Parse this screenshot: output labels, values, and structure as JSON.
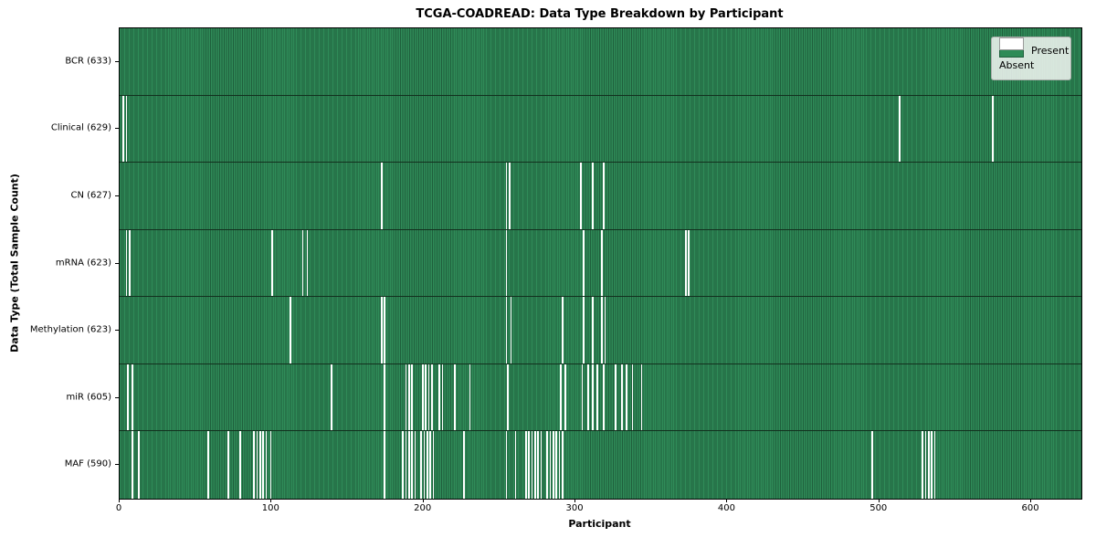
{
  "title": "TCGA-COADREAD: Data Type Breakdown by Participant",
  "axis": {
    "xlabel": "Participant",
    "ylabel": "Data Type (Total Sample Count)"
  },
  "legend": {
    "present_label": "Present",
    "absent_label": "Absent"
  },
  "colors": {
    "present": "#2e8b57",
    "present_edge": "#1f5f3c",
    "absent": "#ffffff",
    "row_divider": "#12301e",
    "axis_line": "#000000"
  },
  "chart_data": {
    "type": "heatmap",
    "title": "TCGA-COADREAD: Data Type Breakdown by Participant",
    "xlabel": "Participant",
    "ylabel": "Data Type (Total Sample Count)",
    "legend": [
      "Present",
      "Absent"
    ],
    "legend_position": "upper right",
    "grid": false,
    "x_range": [
      0,
      633
    ],
    "x_ticks": [
      0,
      100,
      200,
      300,
      400,
      500,
      600
    ],
    "rows": [
      {
        "data_type": "BCR",
        "label": "BCR (633)",
        "present_count": 633,
        "absent_participants": []
      },
      {
        "data_type": "Clinical",
        "label": "Clinical (629)",
        "present_count": 629,
        "absent_participants": [
          2,
          4,
          513,
          574
        ]
      },
      {
        "data_type": "CN",
        "label": "CN (627)",
        "present_count": 627,
        "absent_participants": [
          172,
          254,
          256,
          303,
          311,
          318
        ]
      },
      {
        "data_type": "mRNA",
        "label": "mRNA (623)",
        "present_count": 623,
        "absent_participants": [
          4,
          6,
          100,
          120,
          123,
          254,
          305,
          317,
          372,
          374
        ]
      },
      {
        "data_type": "Methylation",
        "label": "Methylation (623)",
        "present_count": 623,
        "absent_participants": [
          112,
          172,
          174,
          254,
          257,
          291,
          305,
          311,
          317,
          319
        ]
      },
      {
        "data_type": "miR",
        "label": "miR (605)",
        "present_count": 605,
        "absent_participants": [
          5,
          8,
          139,
          174,
          188,
          190,
          192,
          199,
          201,
          203,
          205,
          210,
          212,
          220,
          230,
          255,
          290,
          293,
          304,
          308,
          311,
          314,
          318,
          326,
          330,
          333,
          337,
          343
        ]
      },
      {
        "data_type": "MAF",
        "label": "MAF (590)",
        "present_count": 590,
        "absent_participants": [
          8,
          12,
          58,
          71,
          79,
          88,
          90,
          92,
          94,
          96,
          99,
          174,
          186,
          188,
          190,
          192,
          194,
          198,
          200,
          202,
          204,
          206,
          226,
          254,
          260,
          267,
          269,
          271,
          273,
          275,
          277,
          281,
          283,
          285,
          287,
          289,
          291,
          495,
          528,
          530,
          532,
          534,
          536
        ]
      }
    ]
  }
}
